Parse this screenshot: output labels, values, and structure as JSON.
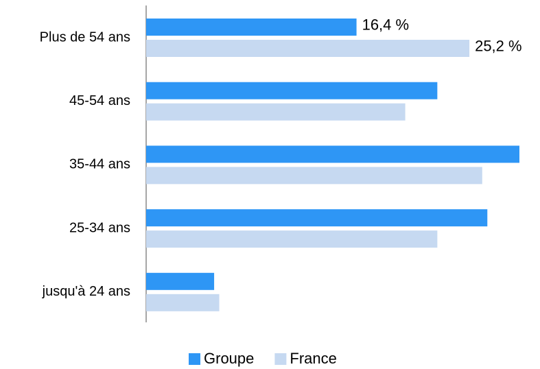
{
  "chart_data": {
    "type": "bar",
    "orientation": "horizontal",
    "categories": [
      "Plus de 54 ans",
      "45-54 ans",
      "35-44 ans",
      "25-34 ans",
      "jusqu'à 24 ans"
    ],
    "series": [
      {
        "name": "Groupe",
        "color": "#2e96f5",
        "values": [
          16.4,
          22.7,
          29.1,
          26.6,
          5.3
        ],
        "value_labels": [
          "16,4 %",
          null,
          null,
          null,
          null
        ]
      },
      {
        "name": "France",
        "color": "#c6d9f1",
        "values": [
          25.2,
          20.2,
          26.2,
          22.7,
          5.7
        ],
        "value_labels": [
          "25,2 %",
          null,
          null,
          null,
          null
        ]
      }
    ],
    "legend": "bottom"
  }
}
